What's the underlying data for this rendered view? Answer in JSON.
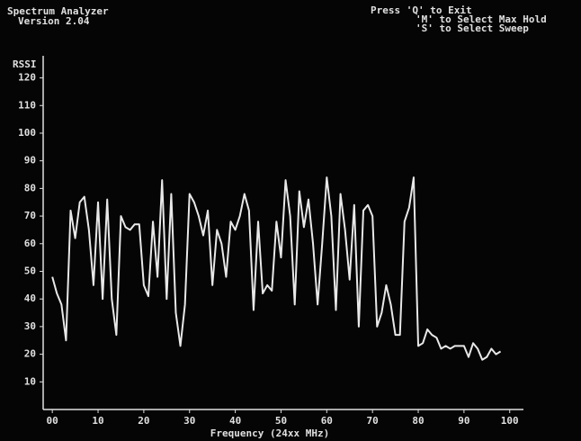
{
  "chart_data": {
    "type": "line",
    "title": "Spectrum Analyzer",
    "subtitle": "Version 2.04",
    "instructions": [
      "Press 'Q' to Exit",
      "'M' to Select Max Hold",
      "'S' to Select Sweep"
    ],
    "y_label": "RSSI",
    "x_label": "Frequency (24xx MHz)",
    "xlim": [
      -2,
      103
    ],
    "ylim": [
      0,
      128
    ],
    "xticks": [
      {
        "value": 0,
        "label": "00"
      },
      10,
      20,
      30,
      40,
      50,
      60,
      70,
      80,
      90,
      100
    ],
    "yticks": [
      10,
      20,
      30,
      40,
      50,
      60,
      70,
      80,
      90,
      100,
      110,
      120
    ],
    "x": [
      0,
      1,
      2,
      3,
      4,
      5,
      6,
      7,
      8,
      9,
      10,
      11,
      12,
      13,
      14,
      15,
      16,
      17,
      18,
      19,
      20,
      21,
      22,
      23,
      24,
      25,
      26,
      27,
      28,
      29,
      30,
      31,
      32,
      33,
      34,
      35,
      36,
      37,
      38,
      39,
      40,
      41,
      42,
      43,
      44,
      45,
      46,
      47,
      48,
      49,
      50,
      51,
      52,
      53,
      54,
      55,
      56,
      57,
      58,
      59,
      60,
      61,
      62,
      63,
      64,
      65,
      66,
      67,
      68,
      69,
      70,
      71,
      72,
      73,
      74,
      75,
      76,
      77,
      78,
      79,
      80,
      81,
      82,
      83,
      84,
      85,
      86,
      87,
      88,
      89,
      90,
      91,
      92,
      93,
      94,
      95,
      96,
      97,
      98
    ],
    "series": [
      {
        "name": "RSSI",
        "color": "#e8e8e8",
        "values": [
          48,
          42,
          38,
          25,
          72,
          62,
          75,
          77,
          65,
          45,
          75,
          40,
          76,
          40,
          27,
          70,
          66,
          65,
          67,
          67,
          45,
          41,
          68,
          48,
          83,
          40,
          78,
          35,
          23,
          38,
          78,
          75,
          70,
          63,
          72,
          45,
          65,
          60,
          48,
          68,
          65,
          70,
          78,
          72,
          36,
          68,
          42,
          45,
          43,
          68,
          55,
          83,
          70,
          38,
          79,
          66,
          76,
          60,
          38,
          60,
          84,
          70,
          36,
          78,
          65,
          47,
          74,
          30,
          72,
          74,
          70,
          30,
          35,
          45,
          38,
          27,
          27,
          68,
          73,
          84,
          23,
          24,
          29,
          27,
          26,
          22,
          23,
          22,
          23,
          23,
          23,
          19,
          24,
          22,
          18,
          19,
          22,
          20,
          21
        ]
      }
    ]
  }
}
